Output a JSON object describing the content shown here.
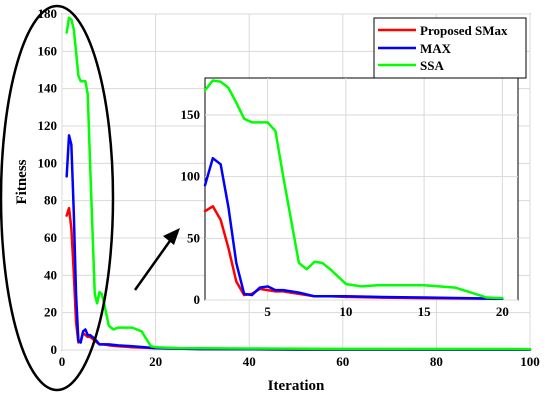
{
  "chart_data": {
    "type": "line",
    "xlabel": "Iteration",
    "ylabel": "Fitness",
    "xlim": [
      0,
      100
    ],
    "ylim": [
      0,
      180
    ],
    "xticks": [
      0,
      20,
      40,
      60,
      80,
      100
    ],
    "yticks": [
      0,
      20,
      40,
      60,
      80,
      100,
      120,
      140,
      160,
      180
    ],
    "grid": true,
    "legend_position": "top-right",
    "series": [
      {
        "name": "Proposed SMax",
        "color": "#ff0000",
        "x": [
          1,
          1.5,
          2,
          2.5,
          3,
          3.5,
          4,
          4.5,
          5,
          5.5,
          6,
          7,
          8,
          9,
          10,
          12,
          15,
          20,
          30,
          50,
          100
        ],
        "y": [
          72,
          76,
          65,
          42,
          15,
          4,
          5,
          9,
          8,
          7,
          7,
          5,
          3,
          3,
          2.5,
          2,
          1.5,
          1,
          0.5,
          0.3,
          0.2
        ]
      },
      {
        "name": "MAX",
        "color": "#0000ff",
        "x": [
          1,
          1.5,
          2,
          2.5,
          3,
          3.5,
          4,
          4.5,
          5,
          5.5,
          6,
          7,
          8,
          9,
          10,
          12,
          15,
          20,
          30,
          50,
          100
        ],
        "y": [
          93,
          115,
          110,
          75,
          30,
          5,
          4,
          10,
          11,
          8,
          8,
          6,
          3,
          3,
          3,
          2.5,
          2,
          1,
          0.5,
          0.3,
          0.2
        ]
      },
      {
        "name": "SSA",
        "color": "#00ff00",
        "x": [
          1,
          1.5,
          2,
          2.5,
          3,
          3.5,
          4,
          4.5,
          5,
          5.5,
          6,
          7,
          7.5,
          8,
          8.5,
          9,
          10,
          11,
          12,
          14,
          15,
          17,
          18,
          19,
          20,
          25,
          40,
          60,
          100
        ],
        "y": [
          170,
          178,
          177,
          172,
          160,
          147,
          144,
          144,
          144,
          137,
          100,
          30,
          25,
          31,
          30,
          25,
          13,
          11,
          12,
          12,
          12,
          10,
          6,
          2,
          1.5,
          1,
          0.8,
          0.6,
          0.5
        ]
      }
    ],
    "inset": {
      "xlim": [
        1,
        21
      ],
      "ylim": [
        0,
        180
      ],
      "xticks": [
        5,
        10,
        15,
        20
      ],
      "yticks": [
        0,
        50,
        100,
        150
      ]
    }
  }
}
